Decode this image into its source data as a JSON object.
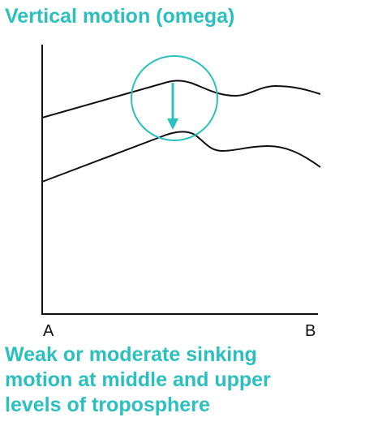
{
  "title": "Vertical motion (omega)",
  "axis": {
    "left_label": "A",
    "right_label": "B"
  },
  "caption": [
    "Weak or moderate sinking",
    "motion at middle and upper",
    "levels of troposphere"
  ],
  "colors": {
    "accent": "#2bbfbf",
    "line": "#111111"
  },
  "annotation": {
    "shape": "circle",
    "arrow": "down-arrow-icon"
  }
}
